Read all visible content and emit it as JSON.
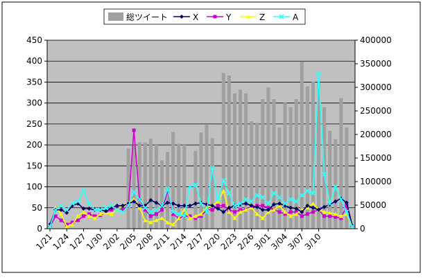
{
  "chart_data": {
    "type": "bar",
    "legend_position": "top",
    "grid": true,
    "plot_background": "#c0c0c0",
    "x_tick_labels": [
      "1/21",
      "1/24",
      "1/27",
      "1/30",
      "2/02",
      "2/05",
      "2/08",
      "2/11",
      "2/14",
      "2/17",
      "2/20",
      "2/23",
      "2/26",
      "3/01",
      "3/04",
      "3/07",
      "3/10"
    ],
    "x_tick_every": 3,
    "y_left": {
      "min": 0,
      "max": 450,
      "step": 50
    },
    "y_right": {
      "min": 0,
      "max": 400000,
      "step": 50000
    },
    "bar_series": {
      "name": "総ツイート",
      "color": "#a0a0a0",
      "axis": "right",
      "values": [
        0,
        0,
        0,
        0,
        0,
        0,
        0,
        0,
        0,
        0,
        0,
        0,
        0,
        0,
        170000,
        175000,
        183000,
        183000,
        191000,
        178000,
        145000,
        163000,
        205000,
        180000,
        178000,
        0,
        165000,
        204000,
        220000,
        192000,
        0,
        330000,
        325000,
        287000,
        295000,
        287000,
        228000,
        225000,
        275000,
        300000,
        275000,
        215000,
        267000,
        258000,
        275000,
        355000,
        302000,
        312000,
        310000,
        258000,
        208000,
        190000,
        277000,
        215000,
        0
      ]
    },
    "line_series": [
      {
        "name": "X",
        "color": "#000066",
        "marker": "diamond",
        "axis": "left",
        "values": [
          10,
          45,
          45,
          38,
          55,
          60,
          48,
          48,
          45,
          45,
          42,
          50,
          55,
          55,
          60,
          65,
          55,
          55,
          68,
          62,
          55,
          62,
          60,
          55,
          55,
          55,
          60,
          62,
          58,
          55,
          48,
          40,
          50,
          55,
          58,
          60,
          55,
          52,
          45,
          45,
          58,
          60,
          55,
          50,
          48,
          40,
          55,
          50,
          45,
          52,
          58,
          65,
          72,
          62,
          8
        ]
      },
      {
        "name": "Y",
        "color": "#cc00cc",
        "marker": "square",
        "axis": "left",
        "values": [
          5,
          30,
          20,
          10,
          15,
          20,
          30,
          35,
          30,
          32,
          40,
          45,
          50,
          45,
          55,
          235,
          70,
          45,
          30,
          35,
          45,
          90,
          35,
          25,
          30,
          30,
          25,
          30,
          45,
          45,
          55,
          55,
          45,
          40,
          45,
          45,
          50,
          55,
          55,
          50,
          45,
          40,
          35,
          40,
          40,
          30,
          35,
          40,
          45,
          30,
          30,
          28,
          25,
          55,
          5
        ]
      },
      {
        "name": "Z",
        "color": "#ffff00",
        "marker": "triangle",
        "axis": "left",
        "values": [
          5,
          50,
          35,
          5,
          10,
          30,
          40,
          30,
          25,
          35,
          38,
          35,
          45,
          55,
          62,
          70,
          50,
          20,
          15,
          20,
          25,
          15,
          10,
          25,
          45,
          25,
          30,
          35,
          50,
          55,
          65,
          90,
          40,
          25,
          40,
          45,
          50,
          35,
          25,
          40,
          45,
          55,
          40,
          30,
          35,
          45,
          50,
          60,
          45,
          40,
          38,
          35,
          30,
          35,
          5
        ]
      },
      {
        "name": "A",
        "color": "#33ffff",
        "marker": "cross",
        "axis": "left",
        "values": [
          5,
          45,
          55,
          45,
          60,
          65,
          90,
          60,
          45,
          45,
          50,
          55,
          45,
          40,
          55,
          88,
          70,
          50,
          40,
          45,
          55,
          95,
          40,
          35,
          30,
          100,
          105,
          60,
          40,
          145,
          70,
          115,
          85,
          55,
          60,
          70,
          65,
          80,
          75,
          60,
          85,
          75,
          60,
          70,
          65,
          80,
          90,
          85,
          370,
          130,
          60,
          100,
          70,
          40,
          5
        ]
      }
    ]
  }
}
